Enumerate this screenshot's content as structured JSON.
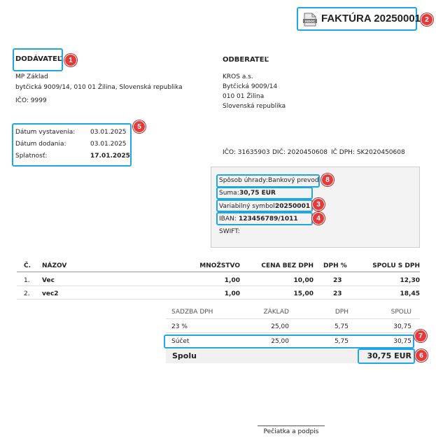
{
  "header": {
    "title": "FAKTÚRA 20250001",
    "doc_icon_label": "ISDOC"
  },
  "supplier": {
    "heading": "DODÁVATEĽ",
    "name": "MP Základ",
    "address": "bytčická 9009/14, 010 01 Žilina, Slovenská republika",
    "ico": "IČO: 9999"
  },
  "customer": {
    "heading": "ODBERATEĽ",
    "lines": [
      "KROS a.s.",
      "Bytčická 9009/14",
      "010 01 Žilina",
      "Slovenská republika"
    ],
    "ico": "IČO: 31635903",
    "dic": "DIČ: 2020450608",
    "icdph": "IČ DPH: SK2020450608"
  },
  "dates": [
    {
      "label": "Dátum vystavenia:",
      "value": "03.01.2025"
    },
    {
      "label": "Dátum dodania:",
      "value": "03.01.2025"
    },
    {
      "label": "Splatnosť:",
      "value": "17.01.2025"
    }
  ],
  "payment": {
    "method_label": "Spôsob úhrady:",
    "method_value": "Bankový prevod",
    "sum_label": "Suma:",
    "sum_value": "30,75 EUR",
    "vs_label": "Variabilný symbol:",
    "vs_value": "20250001",
    "iban_label": "IBAN:",
    "iban_value": "123456789/1011",
    "swift_label": "SWIFT:"
  },
  "items_table": {
    "headers": [
      "Č.",
      "NÁZOV",
      "MNOŽSTVO",
      "CENA BEZ DPH",
      "DPH %",
      "SPOLU S DPH"
    ],
    "rows": [
      [
        "1.",
        "Vec",
        "1,00",
        "10,00",
        "23",
        "12,30"
      ],
      [
        "2.",
        "vec2",
        "1,00",
        "15,00",
        "23",
        "18,45"
      ]
    ]
  },
  "vat_table": {
    "headers": [
      "SADZBA DPH",
      "ZÁKLAD",
      "DPH",
      "SPOLU"
    ],
    "rows": [
      [
        "23 %",
        "25,00",
        "5,75",
        "30,75"
      ]
    ],
    "sum_row": [
      "Súčet",
      "25,00",
      "5,75",
      "30,75"
    ],
    "total_label": "Spolu",
    "total_value": "30,75 EUR"
  },
  "signature": "Pečiatka a podpis",
  "badges": [
    "1",
    "2",
    "3",
    "4",
    "5",
    "6",
    "7",
    "8"
  ],
  "colors": {
    "highlight": "#1ea7e1",
    "badge": "#e23b3b"
  }
}
